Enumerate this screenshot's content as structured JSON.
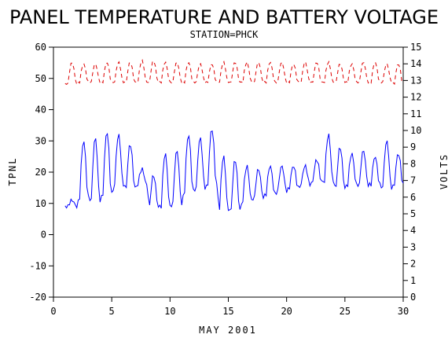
{
  "chart_data": {
    "type": "line",
    "title": "PANEL TEMPERATURE AND BATTERY VOLTAGE",
    "subtitle": "STATION=PHCK",
    "xlabel": "MAY 2001",
    "ylabel_left": "TPNL",
    "ylabel_right": "VOLTS",
    "xlim": [
      0,
      30
    ],
    "ylim_left": [
      -20,
      60
    ],
    "ylim_right": [
      0,
      15
    ],
    "x_ticks": [
      0,
      5,
      10,
      15,
      20,
      25,
      30
    ],
    "y_ticks_left": [
      -20,
      -10,
      0,
      10,
      20,
      30,
      40,
      50,
      60
    ],
    "y_ticks_right": [
      0,
      1,
      2,
      3,
      4,
      5,
      6,
      7,
      8,
      9,
      10,
      11,
      12,
      13,
      14,
      15
    ],
    "grid": false,
    "series": [
      {
        "axis": "left",
        "color": "#0000ff",
        "style": "solid",
        "daily_min": [
          9,
          12,
          11,
          13,
          16,
          15,
          16,
          9,
          9,
          10,
          14,
          15,
          16,
          8,
          8,
          11,
          12,
          13,
          14,
          15,
          16,
          17,
          17,
          15,
          16,
          16,
          16,
          15,
          16,
          14
        ],
        "daily_max": [
          11,
          30,
          31,
          33,
          32,
          29,
          21,
          19,
          26,
          27,
          32,
          31,
          34,
          25,
          24,
          22,
          21,
          22,
          22,
          22,
          22,
          24,
          32,
          28,
          26,
          27,
          25,
          30,
          26,
          30
        ]
      },
      {
        "axis": "right",
        "color": "#dd0000",
        "style": "dashed",
        "daily_min": [
          12.8,
          12.9,
          12.9,
          12.9,
          12.9,
          12.9,
          12.9,
          12.9,
          12.9,
          12.9,
          12.9,
          12.9,
          12.9,
          12.9,
          12.9,
          12.9,
          12.9,
          12.9,
          12.9,
          12.9,
          12.9,
          12.9,
          12.9,
          12.9,
          12.9,
          12.9,
          12.9,
          12.9,
          12.8,
          12.9
        ],
        "daily_max": [
          14.1,
          14.0,
          14.0,
          14.1,
          14.1,
          14.1,
          14.2,
          14.2,
          14.1,
          14.1,
          14.1,
          14.0,
          14.0,
          14.1,
          14.1,
          14.1,
          14.1,
          14.1,
          14.1,
          14.0,
          14.1,
          14.1,
          14.1,
          14.0,
          14.0,
          14.1,
          14.1,
          14.0,
          14.0,
          14.0
        ]
      }
    ]
  }
}
